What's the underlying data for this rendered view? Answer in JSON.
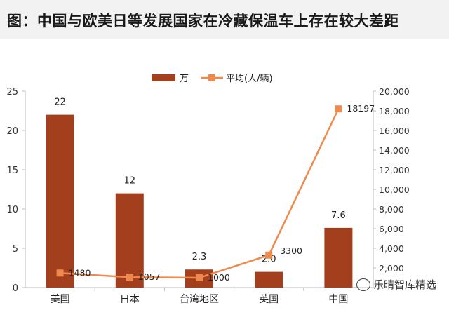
{
  "title": "图：中国与欧美日等发展国家在冷藏保温车上存在较大差距",
  "watermark": "乐晴智库精选",
  "chart_data": {
    "type": "bar",
    "categories": [
      "美国",
      "日本",
      "台湾地区",
      "英国",
      "中国"
    ],
    "series": [
      {
        "name": "万",
        "type": "bar",
        "axis": "left",
        "values": [
          22,
          12,
          2.3,
          2.0,
          7.6
        ],
        "labels": [
          "22",
          "12",
          "2.3",
          "2.0",
          "7.6"
        ],
        "color": "#a33f1c"
      },
      {
        "name": "平均(人/辆)",
        "type": "line",
        "axis": "right",
        "values": [
          1480,
          1057,
          1000,
          3300,
          18197
        ],
        "labels": [
          "1480",
          "1057",
          "1000",
          "3300",
          "18197"
        ],
        "color": "#ee8a4e"
      }
    ],
    "ylim_left": [
      0,
      25
    ],
    "yticks_left": [
      "0",
      "5",
      "10",
      "15",
      "20",
      "25"
    ],
    "ylim_right": [
      0,
      20000
    ],
    "yticks_right": [
      "2,000",
      "4,000",
      "6,000",
      "8,000",
      "10,000",
      "12,000",
      "14,000",
      "16,000",
      "18,000",
      "20,000"
    ],
    "legend_position": "top-center"
  }
}
